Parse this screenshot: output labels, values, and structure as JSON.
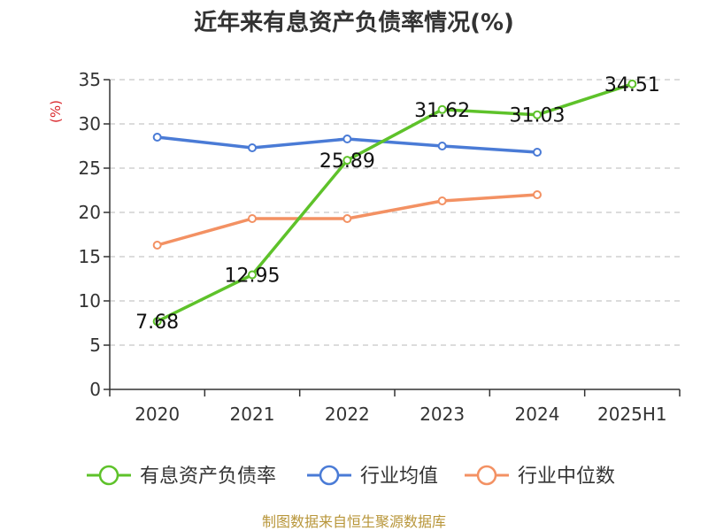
{
  "chart_data": {
    "type": "line",
    "title": "近年来有息资产负债率情况(%)",
    "ylabel": "(%)",
    "xlabel": "",
    "categories": [
      "2020",
      "2021",
      "2022",
      "2023",
      "2024",
      "2025H1"
    ],
    "ylim": [
      0,
      35
    ],
    "yticks": [
      0,
      5,
      10,
      15,
      20,
      25,
      30,
      35
    ],
    "grid": "horizontal dashed",
    "legend_position": "bottom",
    "series": [
      {
        "name": "有息资产负债率",
        "color": "#5ec22a",
        "values": [
          7.68,
          12.95,
          25.89,
          31.62,
          31.03,
          34.51
        ],
        "labels": [
          "7.68",
          "12.95",
          "25.89",
          "31.62",
          "31.03",
          "34.51"
        ]
      },
      {
        "name": "行业均值",
        "color": "#4a7bd6",
        "values": [
          28.5,
          27.3,
          28.3,
          27.5,
          26.8,
          null
        ]
      },
      {
        "name": "行业中位数",
        "color": "#f39163",
        "values": [
          16.3,
          19.3,
          19.3,
          21.3,
          22.0,
          null
        ]
      }
    ],
    "source": "制图数据来自恒生聚源数据库"
  }
}
